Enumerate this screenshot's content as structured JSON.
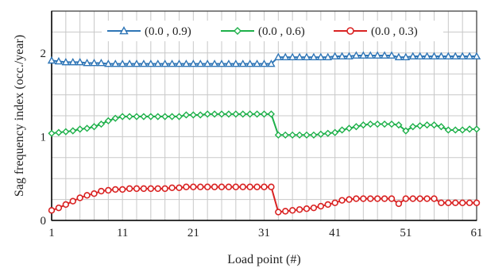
{
  "chart_data": {
    "type": "line",
    "xlabel": "Load point (#)",
    "ylabel": "Sag frequency index (occ./year)",
    "xlim": [
      1,
      61
    ],
    "ylim": [
      0,
      2.5
    ],
    "x_ticks": [
      1,
      11,
      21,
      31,
      41,
      51,
      61
    ],
    "y_ticks": [
      0,
      1,
      2
    ],
    "grid": true,
    "legend_position": "top",
    "series": [
      {
        "name": "(0.0 , 0.9)",
        "color": "#2e75b6",
        "marker": "triangle",
        "values": [
          1.91,
          1.9,
          1.89,
          1.89,
          1.89,
          1.88,
          1.88,
          1.88,
          1.87,
          1.87,
          1.87,
          1.87,
          1.87,
          1.87,
          1.87,
          1.87,
          1.87,
          1.87,
          1.87,
          1.87,
          1.87,
          1.87,
          1.87,
          1.87,
          1.87,
          1.87,
          1.87,
          1.87,
          1.87,
          1.87,
          1.87,
          1.87,
          1.95,
          1.95,
          1.95,
          1.95,
          1.95,
          1.95,
          1.95,
          1.95,
          1.96,
          1.96,
          1.96,
          1.97,
          1.97,
          1.97,
          1.97,
          1.97,
          1.97,
          1.95,
          1.95,
          1.96,
          1.96,
          1.96,
          1.96,
          1.96,
          1.96,
          1.96,
          1.96,
          1.96,
          1.96
        ]
      },
      {
        "name": "(0.0 , 0.6)",
        "color": "#1eb04a",
        "marker": "diamond",
        "values": [
          1.04,
          1.05,
          1.06,
          1.07,
          1.09,
          1.1,
          1.12,
          1.15,
          1.19,
          1.22,
          1.24,
          1.24,
          1.24,
          1.24,
          1.24,
          1.24,
          1.24,
          1.24,
          1.24,
          1.26,
          1.26,
          1.26,
          1.27,
          1.27,
          1.27,
          1.27,
          1.27,
          1.27,
          1.27,
          1.27,
          1.27,
          1.27,
          1.02,
          1.02,
          1.02,
          1.02,
          1.02,
          1.02,
          1.03,
          1.04,
          1.05,
          1.08,
          1.1,
          1.12,
          1.14,
          1.15,
          1.15,
          1.15,
          1.15,
          1.14,
          1.07,
          1.12,
          1.13,
          1.14,
          1.14,
          1.12,
          1.08,
          1.08,
          1.08,
          1.09,
          1.09
        ]
      },
      {
        "name": "(0.0 , 0.3)",
        "color": "#d92323",
        "marker": "circle",
        "values": [
          0.12,
          0.15,
          0.19,
          0.23,
          0.27,
          0.3,
          0.32,
          0.35,
          0.36,
          0.37,
          0.37,
          0.38,
          0.38,
          0.38,
          0.38,
          0.38,
          0.38,
          0.39,
          0.39,
          0.4,
          0.4,
          0.4,
          0.4,
          0.4,
          0.4,
          0.4,
          0.4,
          0.4,
          0.4,
          0.4,
          0.4,
          0.4,
          0.1,
          0.11,
          0.12,
          0.13,
          0.14,
          0.15,
          0.17,
          0.19,
          0.21,
          0.24,
          0.25,
          0.26,
          0.26,
          0.26,
          0.26,
          0.26,
          0.26,
          0.2,
          0.26,
          0.26,
          0.26,
          0.26,
          0.26,
          0.21,
          0.21,
          0.21,
          0.21,
          0.21,
          0.21
        ]
      }
    ]
  }
}
